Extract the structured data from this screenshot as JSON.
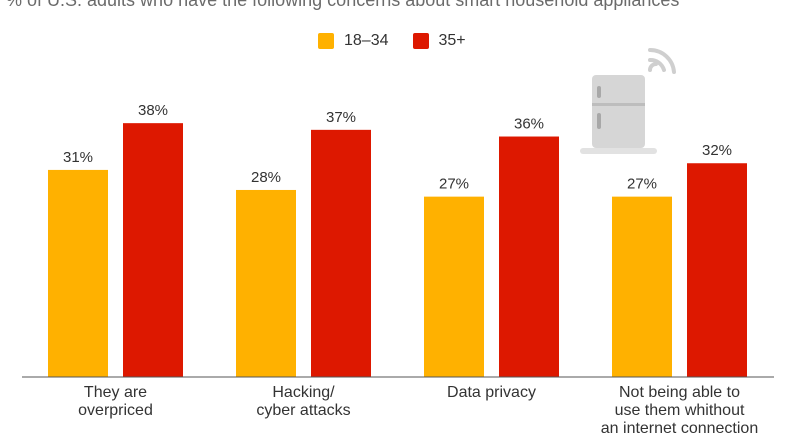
{
  "subtitle": "% of U.S. adults who have the following concerns about smart household appliances",
  "legend": [
    {
      "name": "18–34",
      "color": "#ffb100"
    },
    {
      "name": "35+",
      "color": "#dd1800"
    }
  ],
  "icon": "smart-fridge-wifi-icon",
  "chart_data": {
    "type": "bar",
    "categories": [
      [
        "They are",
        "overpriced"
      ],
      [
        "Hacking/",
        "cyber attacks"
      ],
      [
        "Data privacy"
      ],
      [
        "Not being able to",
        "use them whithout",
        "an internet connection"
      ]
    ],
    "series": [
      {
        "name": "18–34",
        "color": "#ffb100",
        "values": [
          31,
          28,
          27,
          27
        ],
        "labels": [
          "31%",
          "28%",
          "27%",
          "27%"
        ]
      },
      {
        "name": "35+",
        "color": "#dd1800",
        "values": [
          38,
          37,
          36,
          32
        ],
        "labels": [
          "38%",
          "37%",
          "36%",
          "32%"
        ]
      }
    ],
    "ylim": [
      0,
      40
    ],
    "grid": false,
    "legend_position": "top-center"
  }
}
